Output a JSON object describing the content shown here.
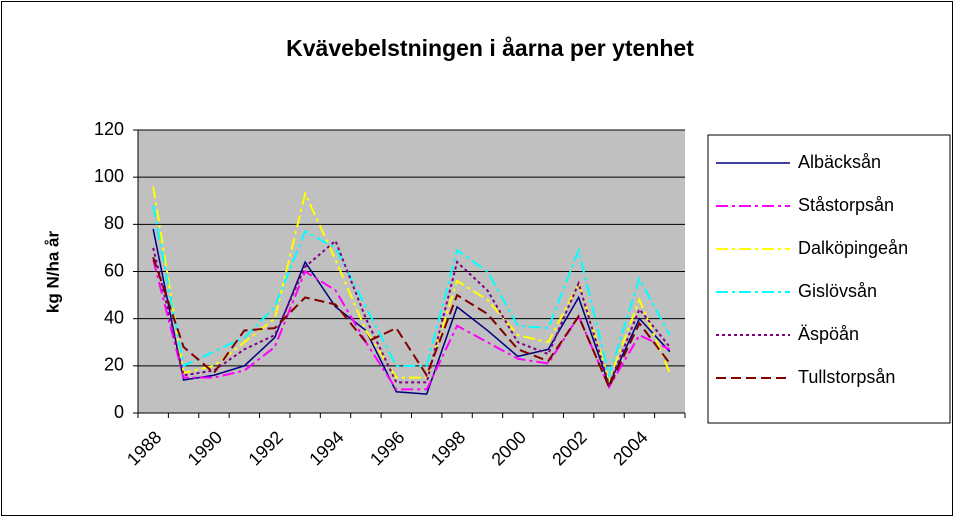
{
  "chart_data": {
    "type": "line",
    "title": "Kvävebelstningen i åarna per ytenhet",
    "y_label": "kg N/ha år",
    "categories": [
      "1988",
      null,
      "1990",
      null,
      "1992",
      null,
      "1994",
      null,
      "1996",
      null,
      "1998",
      null,
      "2000",
      null,
      "2002",
      null,
      "2004",
      null
    ],
    "ylim": [
      0,
      120
    ],
    "yticks": [
      0,
      20,
      40,
      60,
      80,
      100,
      120
    ],
    "grid": true,
    "legend": "right",
    "series": [
      {
        "name": "Albäcksån",
        "color": "#000080",
        "dash": "solid",
        "values": [
          78,
          14,
          16,
          20,
          32,
          64,
          45,
          35,
          9,
          8,
          45,
          35,
          24,
          27,
          49,
          12,
          40,
          26
        ]
      },
      {
        "name": "Ståstorpsån",
        "color": "#ff00ff",
        "dash": "dashdot",
        "values": [
          65,
          15,
          15,
          18,
          28,
          60,
          52,
          30,
          10,
          10,
          37,
          30,
          23,
          21,
          41,
          11,
          33,
          27
        ]
      },
      {
        "name": "Dalköpingeån",
        "color": "#ffff00",
        "dash": "dashdot",
        "values": [
          96,
          17,
          20,
          30,
          40,
          93,
          65,
          35,
          15,
          15,
          56,
          48,
          33,
          30,
          55,
          14,
          48,
          17
        ]
      },
      {
        "name": "Gislövsån",
        "color": "#00ffff",
        "dash": "dashdot",
        "values": [
          88,
          20,
          26,
          32,
          45,
          77,
          70,
          45,
          20,
          20,
          69,
          60,
          37,
          36,
          69,
          16,
          57,
          33
        ]
      },
      {
        "name": "Äspöån",
        "color": "#800080",
        "dash": "dotted",
        "values": [
          70,
          16,
          18,
          27,
          33,
          62,
          73,
          40,
          13,
          13,
          64,
          52,
          30,
          25,
          55,
          12,
          44,
          28
        ]
      },
      {
        "name": "Tullstorpsån",
        "color": "#800000",
        "dash": "dashed",
        "values": [
          66,
          28,
          17,
          35,
          36,
          49,
          46,
          30,
          36,
          16,
          50,
          42,
          27,
          22,
          41,
          11,
          38,
          21
        ]
      }
    ]
  }
}
